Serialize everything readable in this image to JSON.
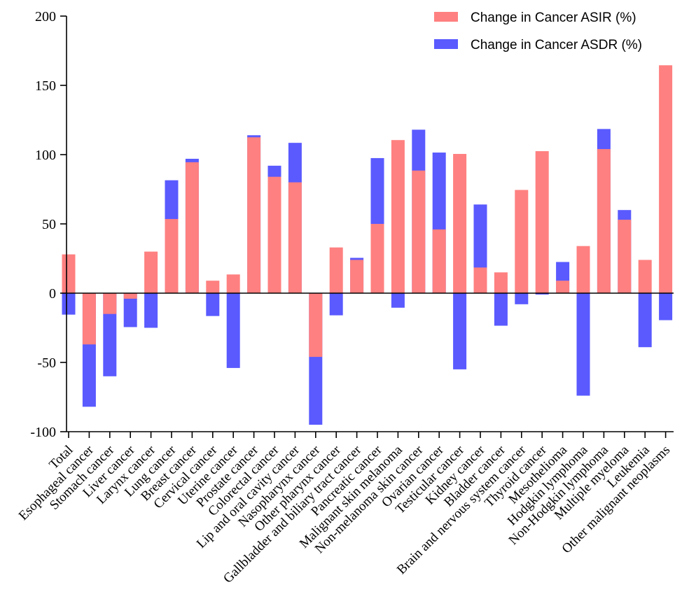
{
  "chart_data": {
    "type": "bar",
    "title": "",
    "xlabel": "",
    "ylabel": "",
    "ylim": [
      -100,
      200
    ],
    "yticks": [
      200,
      150,
      100,
      50,
      0,
      -50,
      -100
    ],
    "legend_position": "top-right",
    "categories": [
      "Total",
      "Esophageal cancer",
      "Stomach cancer",
      "Liver cancer",
      "Larynx cancer",
      "Lung cancer",
      "Breast cancer",
      "Cervical cancer",
      "Uterine cancer",
      "Prostate cancer",
      "Colorectal cancer",
      "Lip and oral cavity cancer",
      "Nasopharynx cancer",
      "Other pharynx cancer",
      "Gallbladder and biliary tract cancer",
      "Pancreatic cancer",
      "Malignant skin melanoma",
      "Non-melanoma skin cancer",
      "Ovarian cancer",
      "Testicular cancer",
      "Kidney cancer",
      "Bladder cancer",
      "Brain and nervous system cancer",
      "Thyroid cancer",
      "Mesothelioma",
      "Hodgkin lymphoma",
      "Non-Hodgkin lymphoma",
      "Multiple myeloma",
      "Leukemia",
      "Other malignant neoplasms"
    ],
    "series": [
      {
        "name": "Change in Cancer ASIR (%)",
        "color": "#ff8080",
        "values": [
          28,
          -37,
          -15,
          -4,
          30,
          53.5,
          94.5,
          9,
          13.5,
          112.5,
          84,
          80,
          -46,
          33,
          24,
          50,
          110.5,
          88.5,
          46,
          100.5,
          18.5,
          15,
          74.5,
          102.5,
          9,
          34,
          104,
          53,
          24,
          164.5
        ]
      },
      {
        "name": "Change in Cancer ASDR (%)",
        "color": "#5a5aff",
        "values": [
          -15.5,
          -82,
          -60,
          -24.5,
          -25,
          81.5,
          97,
          -16.5,
          -54,
          114,
          92,
          108.5,
          -95,
          -16,
          25.5,
          97.5,
          -10.5,
          118,
          101.5,
          -55,
          64,
          -23.5,
          -8,
          -1,
          22.5,
          -74,
          118.5,
          60,
          -39,
          -19.5
        ]
      }
    ]
  }
}
